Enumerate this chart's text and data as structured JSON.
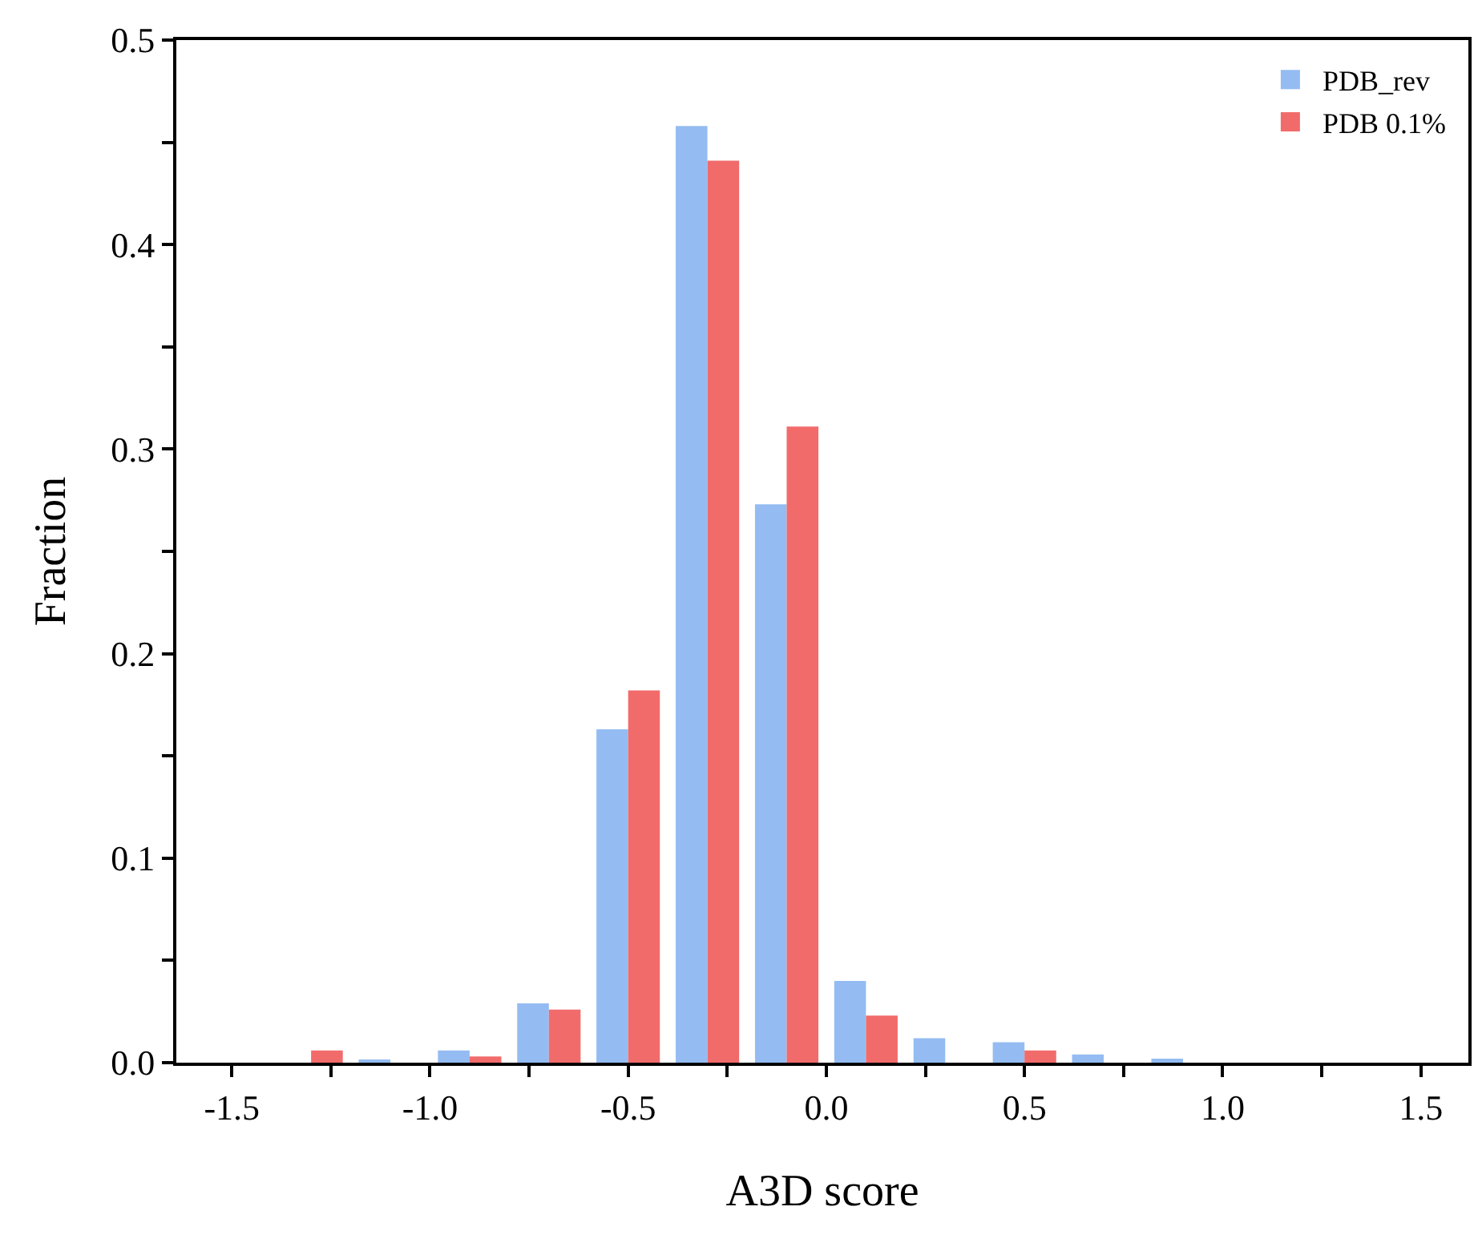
{
  "chart_data": {
    "type": "bar",
    "xlabel": "A3D score",
    "ylabel": "Fraction",
    "x": [
      -1.3,
      -1.1,
      -0.9,
      -0.7,
      -0.5,
      -0.3,
      -0.1,
      0.1,
      0.3,
      0.5,
      0.7,
      0.9
    ],
    "series": [
      {
        "name": "PDB_rev",
        "color": "#94bcf2",
        "values": [
          0,
          0.001,
          0.006,
          0.029,
          0.163,
          0.458,
          0.273,
          0.04,
          0.012,
          0.01,
          0.004,
          0.002
        ]
      },
      {
        "name": "PDB 0.1%",
        "color": "#f26b6b",
        "values": [
          0.006,
          0,
          0.003,
          0.026,
          0.182,
          0.441,
          0.311,
          0.023,
          0,
          0.006,
          0,
          0
        ]
      }
    ],
    "xlim": [
      -1.64,
      1.62
    ],
    "xticks": [
      -1.5,
      {
        "value": -1.25,
        "label": null
      },
      {
        "value": -1.0,
        "label": "-1.0"
      },
      {
        "value": -0.75,
        "label": null
      },
      -0.5,
      {
        "value": -0.25,
        "label": null
      },
      {
        "value": 0,
        "label": "0.0"
      },
      {
        "value": 0.25,
        "label": null
      },
      0.5,
      {
        "value": 0.75,
        "label": null
      },
      {
        "value": 1.0,
        "label": "1.0"
      },
      {
        "value": 1.25,
        "label": null
      },
      1.5
    ],
    "ylim": [
      0,
      0.5
    ],
    "yticks": [
      {
        "value": 0,
        "label": "0.0"
      },
      {
        "value": 0.05,
        "label": null
      },
      0.1,
      {
        "value": 0.15,
        "label": null
      },
      0.2,
      {
        "value": 0.25,
        "label": null
      },
      0.3,
      {
        "value": 0.35,
        "label": null
      },
      0.4,
      {
        "value": 0.45,
        "label": null
      },
      0.5
    ],
    "legend": "top right"
  }
}
